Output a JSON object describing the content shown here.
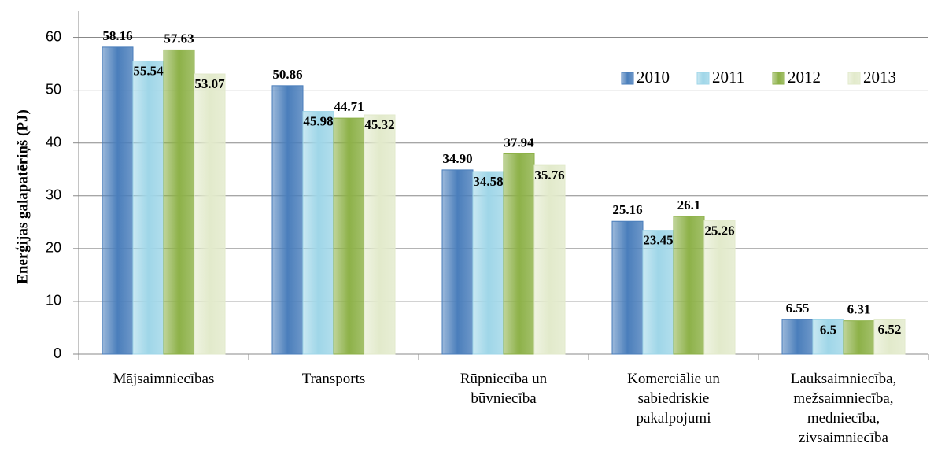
{
  "chart_data": {
    "type": "bar",
    "y_label": "Enerģijas galapatēriņš (PJ)",
    "categories": [
      [
        "Mājsaimniecības"
      ],
      [
        "Transports"
      ],
      [
        "Rūpniecība un",
        "būvniecība"
      ],
      [
        "Komerciālie un",
        "sabiedriskie",
        "pakalpojumi"
      ],
      [
        "Lauksaimniecība,",
        "mežsaimniecība,",
        "medniecība,",
        "zivsaimniecība"
      ]
    ],
    "series": [
      {
        "name": "2010",
        "color": "#4a7ebb",
        "values": [
          58.16,
          50.86,
          34.9,
          25.16,
          6.55
        ],
        "value_labels": [
          "58.16",
          "50.86",
          "34.90",
          "25.16",
          "6.55"
        ]
      },
      {
        "name": "2011",
        "color": "#9fd6e8",
        "values": [
          55.54,
          45.98,
          34.58,
          23.45,
          6.5
        ],
        "value_labels": [
          "55.54",
          "45.98",
          "34.58",
          "23.45",
          "6.5"
        ]
      },
      {
        "name": "2012",
        "color": "#8db148",
        "values": [
          57.63,
          44.71,
          37.94,
          26.1,
          6.31
        ],
        "value_labels": [
          "57.63",
          "44.71",
          "37.94",
          "26.1",
          "6.31"
        ]
      },
      {
        "name": "2013",
        "color": "#e2eacb",
        "values": [
          53.07,
          45.32,
          35.76,
          25.26,
          6.52
        ],
        "value_labels": [
          "53.07",
          "45.32",
          "35.76",
          "25.26",
          "6.52"
        ]
      }
    ],
    "ylim": [
      0,
      65
    ],
    "yticks": [
      0,
      10,
      20,
      30,
      40,
      50,
      60
    ],
    "grid": true,
    "legend": "upper right"
  }
}
